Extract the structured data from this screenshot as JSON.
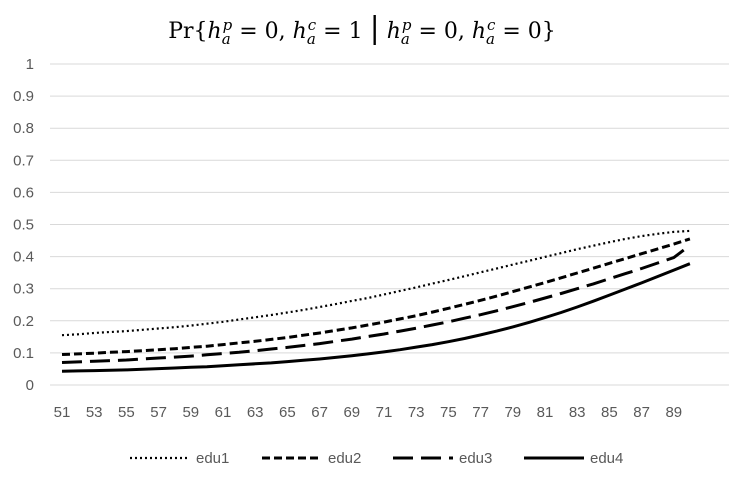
{
  "chart_data": {
    "type": "line",
    "title": "Pr{h_a^p = 0, h_a^c = 1 | h_a^p = 0, h_a^c = 0}",
    "xlabel": "",
    "ylabel": "",
    "x": [
      51,
      52,
      53,
      54,
      55,
      56,
      57,
      58,
      59,
      60,
      61,
      62,
      63,
      64,
      65,
      66,
      67,
      68,
      69,
      70,
      71,
      72,
      73,
      74,
      75,
      76,
      77,
      78,
      79,
      80,
      81,
      82,
      83,
      84,
      85,
      86,
      87,
      88,
      89,
      90
    ],
    "x_tick_labels": [
      "51",
      "53",
      "55",
      "57",
      "59",
      "61",
      "63",
      "65",
      "67",
      "69",
      "71",
      "73",
      "75",
      "77",
      "79",
      "81",
      "83",
      "85",
      "87",
      "89"
    ],
    "ylim": [
      0,
      1
    ],
    "y_tick_labels": [
      "0",
      "0.1",
      "0.2",
      "0.3",
      "0.4",
      "0.5",
      "0.6",
      "0.7",
      "0.8",
      "0.9",
      "1"
    ],
    "grid": true,
    "legend_position": "bottom",
    "series": [
      {
        "name": "edu1",
        "style": "dotted",
        "values": [
          0.155,
          0.158,
          0.162,
          0.165,
          0.168,
          0.172,
          0.176,
          0.18,
          0.185,
          0.191,
          0.197,
          0.204,
          0.211,
          0.218,
          0.226,
          0.234,
          0.243,
          0.252,
          0.262,
          0.271,
          0.282,
          0.293,
          0.304,
          0.316,
          0.327,
          0.339,
          0.351,
          0.363,
          0.375,
          0.387,
          0.399,
          0.411,
          0.423,
          0.434,
          0.445,
          0.455,
          0.464,
          0.471,
          0.477,
          0.48
        ]
      },
      {
        "name": "edu2",
        "style": "short-dash",
        "values": [
          0.095,
          0.097,
          0.099,
          0.102,
          0.104,
          0.107,
          0.11,
          0.113,
          0.117,
          0.121,
          0.126,
          0.131,
          0.136,
          0.142,
          0.148,
          0.155,
          0.162,
          0.17,
          0.178,
          0.187,
          0.196,
          0.206,
          0.216,
          0.227,
          0.239,
          0.251,
          0.264,
          0.277,
          0.291,
          0.305,
          0.319,
          0.334,
          0.349,
          0.364,
          0.379,
          0.394,
          0.409,
          0.424,
          0.439,
          0.455
        ]
      },
      {
        "name": "edu3",
        "style": "long-dash",
        "values": [
          0.07,
          0.072,
          0.074,
          0.076,
          0.078,
          0.081,
          0.084,
          0.087,
          0.09,
          0.094,
          0.098,
          0.102,
          0.107,
          0.112,
          0.117,
          0.123,
          0.129,
          0.136,
          0.143,
          0.151,
          0.159,
          0.168,
          0.177,
          0.187,
          0.197,
          0.208,
          0.219,
          0.231,
          0.244,
          0.257,
          0.271,
          0.285,
          0.3,
          0.315,
          0.331,
          0.347,
          0.363,
          0.38,
          0.397,
          0.435
        ]
      },
      {
        "name": "edu4",
        "style": "solid",
        "values": [
          0.043,
          0.044,
          0.045,
          0.046,
          0.047,
          0.049,
          0.051,
          0.053,
          0.055,
          0.057,
          0.06,
          0.063,
          0.066,
          0.069,
          0.073,
          0.077,
          0.081,
          0.086,
          0.091,
          0.097,
          0.103,
          0.11,
          0.118,
          0.126,
          0.135,
          0.145,
          0.156,
          0.168,
          0.181,
          0.195,
          0.21,
          0.226,
          0.243,
          0.261,
          0.28,
          0.299,
          0.318,
          0.338,
          0.358,
          0.378
        ]
      }
    ]
  }
}
